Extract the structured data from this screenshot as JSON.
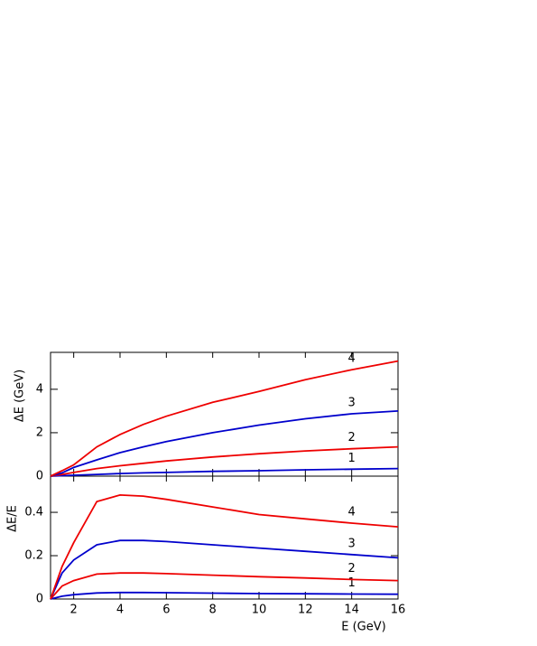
{
  "chart_data": [
    {
      "type": "line",
      "y_label": "ΔE (GeV)",
      "xlim": [
        1,
        16
      ],
      "ylim": [
        0,
        5.7
      ],
      "yticks": [
        0,
        2,
        4
      ],
      "x": [
        1,
        1.5,
        2,
        3,
        4,
        5,
        6,
        8,
        10,
        12,
        14,
        16
      ],
      "series": [
        {
          "name": "1",
          "color": "#0000cc",
          "values": [
            0,
            0.02,
            0.04,
            0.08,
            0.12,
            0.15,
            0.17,
            0.22,
            0.25,
            0.29,
            0.32,
            0.35
          ]
        },
        {
          "name": "2",
          "color": "#ee0000",
          "values": [
            0,
            0.08,
            0.17,
            0.35,
            0.48,
            0.59,
            0.7,
            0.88,
            1.03,
            1.16,
            1.26,
            1.35
          ]
        },
        {
          "name": "3",
          "color": "#0000cc",
          "values": [
            0,
            0.15,
            0.4,
            0.75,
            1.08,
            1.35,
            1.59,
            2.0,
            2.35,
            2.64,
            2.87,
            3.0
          ]
        },
        {
          "name": "4",
          "color": "#ee0000",
          "values": [
            0,
            0.25,
            0.52,
            1.35,
            1.92,
            2.38,
            2.76,
            3.4,
            3.9,
            4.44,
            4.9,
            5.3
          ]
        }
      ]
    },
    {
      "type": "line",
      "y_label": "ΔE/E",
      "x_label": "E (GeV)",
      "xlim": [
        1,
        16
      ],
      "xticks": [
        2,
        4,
        6,
        8,
        10,
        12,
        14,
        16
      ],
      "ylim": [
        0,
        0.567
      ],
      "yticks": [
        0,
        0.2,
        0.4
      ],
      "x": [
        1,
        1.5,
        2,
        3,
        4,
        5,
        6,
        8,
        10,
        12,
        14,
        16
      ],
      "series": [
        {
          "name": "1",
          "color": "#0000cc",
          "values": [
            0,
            0.013,
            0.02,
            0.028,
            0.03,
            0.03,
            0.029,
            0.027,
            0.025,
            0.024,
            0.023,
            0.022
          ]
        },
        {
          "name": "2",
          "color": "#ee0000",
          "values": [
            0,
            0.06,
            0.085,
            0.115,
            0.12,
            0.12,
            0.117,
            0.11,
            0.103,
            0.097,
            0.09,
            0.085
          ]
        },
        {
          "name": "3",
          "color": "#0000cc",
          "values": [
            0,
            0.12,
            0.18,
            0.25,
            0.27,
            0.27,
            0.265,
            0.25,
            0.235,
            0.22,
            0.205,
            0.19
          ]
        },
        {
          "name": "4",
          "color": "#ee0000",
          "values": [
            0,
            0.15,
            0.26,
            0.45,
            0.48,
            0.475,
            0.46,
            0.425,
            0.39,
            0.37,
            0.35,
            0.333
          ]
        }
      ]
    }
  ]
}
